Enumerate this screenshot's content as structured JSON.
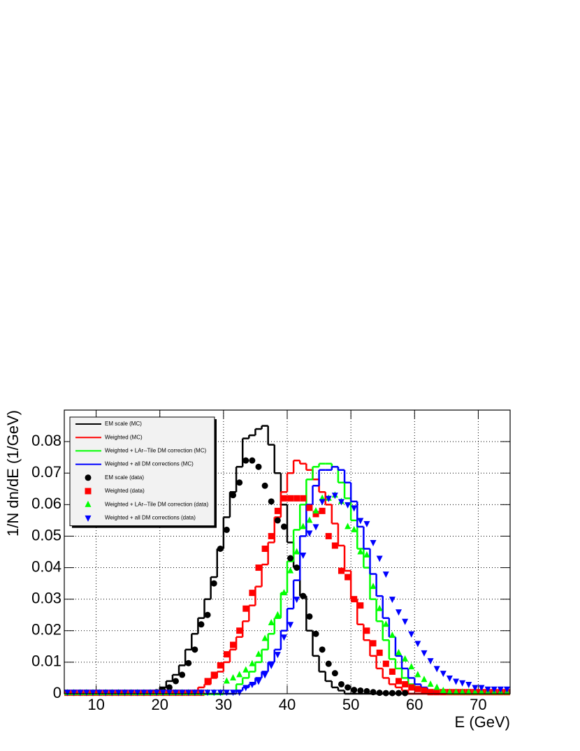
{
  "chart_data": {
    "type": "histogram",
    "x_label": "E (GeV)",
    "y_label": "1/N dn/dE (1/GeV)",
    "bins": [
      5,
      6,
      7,
      8,
      9,
      10,
      11,
      12,
      13,
      14,
      15,
      16,
      17,
      18,
      19,
      20,
      21,
      22,
      23,
      24,
      25,
      26,
      27,
      28,
      29,
      30,
      31,
      32,
      33,
      34,
      35,
      36,
      37,
      38,
      39,
      40,
      41,
      42,
      43,
      44,
      45,
      46,
      47,
      48,
      49,
      50,
      51,
      52,
      53,
      54,
      55,
      56,
      57,
      58,
      59,
      60,
      61,
      62,
      63,
      64,
      65,
      66,
      67,
      68,
      69,
      70,
      71,
      72,
      73,
      74,
      75
    ],
    "xlim": [
      5,
      75
    ],
    "xticks": [
      10,
      20,
      30,
      40,
      50,
      60,
      70
    ],
    "ylim": [
      0,
      0.09
    ],
    "yticks": [
      0,
      0.01,
      0.02,
      0.03,
      0.04,
      0.05,
      0.06,
      0.07,
      0.08
    ],
    "grid": true,
    "legend": "upper left",
    "series": [
      {
        "name": "EM scale (MC)",
        "color": "#000000",
        "style": "step",
        "values": [
          0,
          0,
          0,
          0,
          0,
          0,
          0,
          0,
          0,
          0,
          0,
          0,
          0,
          0,
          0.001,
          0.002,
          0.004,
          0.006,
          0.009,
          0.014,
          0.019,
          0.024,
          0.03,
          0.037,
          0.046,
          0.056,
          0.064,
          0.072,
          0.081,
          0.082,
          0.084,
          0.085,
          0.079,
          0.07,
          0.06,
          0.048,
          0.04,
          0.031,
          0.02,
          0.012,
          0.007,
          0.004,
          0.002,
          0.001,
          0,
          0,
          0,
          0,
          0,
          0,
          0,
          0,
          0,
          0,
          0,
          0,
          0,
          0,
          0,
          0,
          0,
          0,
          0,
          0,
          0,
          0,
          0,
          0,
          0,
          0
        ]
      },
      {
        "name": "Weighted (MC)",
        "color": "#ff0000",
        "style": "step",
        "values": [
          0,
          0,
          0,
          0,
          0,
          0,
          0,
          0,
          0,
          0,
          0,
          0,
          0,
          0,
          0,
          0,
          0,
          0,
          0,
          0,
          0.001,
          0.002,
          0.003,
          0.005,
          0.007,
          0.01,
          0.014,
          0.018,
          0.023,
          0.028,
          0.034,
          0.041,
          0.048,
          0.056,
          0.064,
          0.07,
          0.074,
          0.073,
          0.071,
          0.068,
          0.064,
          0.06,
          0.054,
          0.047,
          0.039,
          0.03,
          0.022,
          0.017,
          0.012,
          0.008,
          0.005,
          0.003,
          0.002,
          0.001,
          0,
          0,
          0,
          0,
          0,
          0,
          0,
          0,
          0,
          0,
          0,
          0,
          0,
          0,
          0,
          0
        ]
      },
      {
        "name": "Weighted + LAr--Tile DM correction (MC)",
        "color": "#00ff00",
        "style": "step",
        "values": [
          0,
          0,
          0,
          0,
          0,
          0,
          0,
          0,
          0,
          0,
          0,
          0,
          0,
          0,
          0,
          0,
          0,
          0,
          0,
          0,
          0,
          0,
          0,
          0,
          0,
          0,
          0,
          0.003,
          0.005,
          0.007,
          0.01,
          0.014,
          0.019,
          0.024,
          0.032,
          0.042,
          0.052,
          0.06,
          0.068,
          0.072,
          0.073,
          0.073,
          0.072,
          0.067,
          0.062,
          0.055,
          0.046,
          0.04,
          0.03,
          0.023,
          0.017,
          0.011,
          0.008,
          0.005,
          0.003,
          0.002,
          0.001,
          0,
          0,
          0,
          0,
          0,
          0,
          0,
          0,
          0,
          0,
          0,
          0,
          0
        ]
      },
      {
        "name": "Weighted + all DM corrections (MC)",
        "color": "#0000ff",
        "style": "step",
        "values": [
          0,
          0,
          0,
          0,
          0,
          0,
          0,
          0,
          0,
          0,
          0,
          0,
          0,
          0,
          0,
          0,
          0,
          0,
          0,
          0,
          0,
          0,
          0,
          0,
          0,
          0,
          0,
          0.001,
          0.002,
          0.003,
          0.005,
          0.007,
          0.01,
          0.014,
          0.02,
          0.027,
          0.036,
          0.05,
          0.06,
          0.066,
          0.071,
          0.071,
          0.072,
          0.071,
          0.067,
          0.061,
          0.053,
          0.046,
          0.038,
          0.031,
          0.024,
          0.018,
          0.012,
          0.008,
          0.005,
          0.003,
          0.002,
          0.001,
          0,
          0,
          0,
          0,
          0,
          0,
          0,
          0,
          0,
          0,
          0,
          0
        ]
      },
      {
        "name": "EM scale (data)",
        "color": "#000000",
        "style": "marker",
        "marker": "circle",
        "values": [
          0.0003,
          0.0003,
          0.0003,
          0.0003,
          0.0003,
          0.0003,
          0.0003,
          0.0003,
          0.0003,
          0.0003,
          0.0003,
          0.0003,
          0.0003,
          0.0003,
          0.0005,
          0.001,
          0.002,
          0.004,
          0.006,
          0.0097,
          0.014,
          0.022,
          0.025,
          0.035,
          0.046,
          0.052,
          0.063,
          0.067,
          0.074,
          0.074,
          0.072,
          0.066,
          0.061,
          0.055,
          0.053,
          0.043,
          0.04,
          0.031,
          0.0245,
          0.019,
          0.014,
          0.0095,
          0.0065,
          0.003,
          0.002,
          0.0012,
          0.001,
          0.0008,
          0.0005,
          0.0003,
          0.0002,
          0.0002,
          0.0002,
          0.0002,
          null,
          null,
          null,
          null,
          null,
          null,
          null,
          null,
          null,
          null,
          null,
          null,
          null,
          null,
          null,
          null
        ]
      },
      {
        "name": "Weighted (data)",
        "color": "#ff0000",
        "style": "marker",
        "marker": "square",
        "values": [
          0.0003,
          0.0003,
          0.0003,
          0.0003,
          0.0003,
          0.0003,
          0.0003,
          0.0003,
          0.0003,
          0.0003,
          0.0003,
          0.0003,
          0.0003,
          0.0003,
          0.0003,
          0.0003,
          0.0003,
          0.0003,
          0.0003,
          0.0003,
          0.0003,
          0.0003,
          0.004,
          0.006,
          0.009,
          0.0125,
          0.0155,
          0.02,
          0.027,
          0.032,
          0.04,
          0.046,
          0.05,
          0.058,
          0.062,
          0.062,
          0.062,
          0.062,
          0.059,
          0.057,
          0.058,
          0.05,
          0.047,
          0.039,
          0.037,
          0.03,
          0.028,
          0.02,
          0.016,
          0.013,
          0.0095,
          0.007,
          0.004,
          0.003,
          0.002,
          0.0015,
          0.001,
          0.0005,
          0.0005,
          0.0005,
          0.0005,
          0.0005,
          0.0005,
          0.0005,
          0.0005,
          0.0005,
          0.0005,
          0.0005,
          0.0005,
          0.0005
        ]
      },
      {
        "name": "Weighted + LAr--Tile DM correction (data)",
        "color": "#00ff00",
        "style": "marker",
        "marker": "triangle-up",
        "values": [
          0.0003,
          0.0003,
          0.0003,
          0.0003,
          0.0003,
          0.0003,
          0.0003,
          0.0003,
          0.0003,
          0.0003,
          0.0003,
          0.0003,
          0.0003,
          0.0003,
          0.0003,
          0.0003,
          0.0003,
          0.0003,
          0.0003,
          0.0003,
          0.0003,
          0.0003,
          0.0003,
          0.0003,
          0.0003,
          0.004,
          0.005,
          0.006,
          0.0075,
          0.0095,
          0.0125,
          0.0175,
          0.0225,
          0.025,
          0.032,
          0.039,
          0.045,
          0.053,
          0.055,
          0.058,
          0.062,
          0.062,
          0.063,
          0.061,
          0.053,
          0.052,
          0.045,
          0.044,
          0.034,
          0.027,
          0.022,
          0.0185,
          0.013,
          0.011,
          0.0085,
          0.006,
          0.0045,
          0.003,
          0.002,
          0.001,
          0.0005,
          0.0005,
          0.0005,
          0.0005,
          0.0005,
          0.0005,
          0.0005,
          0.0005,
          0.0005,
          0.0005
        ]
      },
      {
        "name": "Weighted + all DM corrections (data)",
        "color": "#0000ff",
        "style": "marker",
        "marker": "triangle-down",
        "values": [
          0.0005,
          0.0005,
          0.0005,
          0.0005,
          0.0005,
          0.0005,
          0.0005,
          0.0005,
          0.0005,
          0.0005,
          0.0005,
          0.0005,
          0.0005,
          0.0005,
          0.0005,
          0.0005,
          0.0005,
          0.0005,
          0.0005,
          0.0005,
          0.0005,
          0.0005,
          0.0005,
          0.0005,
          0.0005,
          0.0005,
          0.0005,
          0.0005,
          0.002,
          0.003,
          0.004,
          0.006,
          0.009,
          0.0125,
          0.018,
          0.022,
          0.03,
          0.044,
          0.051,
          0.053,
          0.061,
          0.062,
          0.063,
          0.061,
          0.06,
          0.059,
          0.055,
          0.054,
          0.048,
          0.043,
          0.038,
          0.03,
          0.026,
          0.023,
          0.019,
          0.016,
          0.013,
          0.0105,
          0.008,
          0.0065,
          0.005,
          0.004,
          0.0035,
          0.003,
          0.002,
          0.002,
          0.0015,
          0.0015,
          0.0015,
          0.0015
        ]
      }
    ]
  }
}
